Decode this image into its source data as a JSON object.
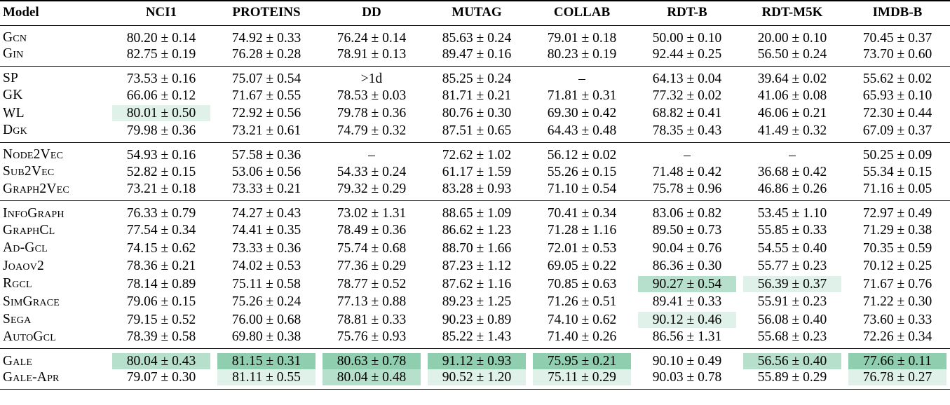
{
  "header": [
    "Model",
    "NCI1",
    "PROTEINS",
    "DD",
    "MUTAG",
    "COLLAB",
    "RDT-B",
    "RDT-M5K",
    "IMDB-B"
  ],
  "groups": [
    [
      {
        "model": "Gcn",
        "values": [
          "80.20 ± 0.14",
          "74.92 ± 0.33",
          "76.24 ± 0.14",
          "85.63 ± 0.24",
          "79.01 ± 0.18",
          "50.00 ± 0.10",
          "20.00 ± 0.10",
          "70.45 ± 0.37"
        ],
        "highlight": [
          "",
          "",
          "",
          "",
          "",
          "",
          "",
          ""
        ]
      },
      {
        "model": "Gin",
        "values": [
          "82.75 ± 0.19",
          "76.28 ± 0.28",
          "78.91 ± 0.13",
          "89.47 ± 0.16",
          "80.23 ± 0.19",
          "92.44 ± 0.25",
          "56.50 ± 0.24",
          "73.70 ± 0.60"
        ],
        "highlight": [
          "",
          "",
          "",
          "",
          "",
          "",
          "",
          ""
        ]
      }
    ],
    [
      {
        "model": "SP",
        "values": [
          "73.53 ± 0.16",
          "75.07 ± 0.54",
          ">1d",
          "85.25 ± 0.24",
          "–",
          "64.13 ± 0.04",
          "39.64 ± 0.02",
          "55.62 ± 0.02"
        ],
        "highlight": [
          "",
          "",
          "",
          "",
          "",
          "",
          "",
          ""
        ]
      },
      {
        "model": "GK",
        "values": [
          "66.06 ± 0.12",
          "71.67 ± 0.55",
          "78.53 ± 0.03",
          "81.71 ± 0.21",
          "71.81 ± 0.31",
          "77.32 ± 0.02",
          "41.06 ± 0.08",
          "65.93 ± 0.10"
        ],
        "highlight": [
          "",
          "",
          "",
          "",
          "",
          "",
          "",
          ""
        ]
      },
      {
        "model": "WL",
        "values": [
          "80.01 ± 0.50",
          "72.92 ± 0.56",
          "79.78 ± 0.36",
          "80.76 ± 0.30",
          "69.30 ± 0.42",
          "68.82 ± 0.41",
          "46.06 ± 0.21",
          "72.30 ± 0.44"
        ],
        "highlight": [
          "light",
          "",
          "",
          "",
          "",
          "",
          "",
          ""
        ]
      },
      {
        "model": "Dgk",
        "values": [
          "79.98 ± 0.36",
          "73.21 ± 0.61",
          "74.79 ± 0.32",
          "87.51 ± 0.65",
          "64.43 ± 0.48",
          "78.35 ± 0.43",
          "41.49 ± 0.32",
          "67.09 ± 0.37"
        ],
        "highlight": [
          "",
          "",
          "",
          "",
          "",
          "",
          "",
          ""
        ]
      }
    ],
    [
      {
        "model": "Node2Vec",
        "values": [
          "54.93 ± 0.16",
          "57.58 ± 0.36",
          "–",
          "72.62 ± 1.02",
          "56.12 ± 0.02",
          "–",
          "–",
          "50.25 ± 0.09"
        ],
        "highlight": [
          "",
          "",
          "",
          "",
          "",
          "",
          "",
          ""
        ]
      },
      {
        "model": "Sub2Vec",
        "values": [
          "52.82 ± 0.15",
          "53.06 ± 0.56",
          "54.33 ± 0.24",
          "61.17 ± 1.59",
          "55.26 ± 0.15",
          "71.48 ± 0.42",
          "36.68 ± 0.42",
          "55.34 ± 0.15"
        ],
        "highlight": [
          "",
          "",
          "",
          "",
          "",
          "",
          "",
          ""
        ]
      },
      {
        "model": "Graph2Vec",
        "values": [
          "73.21 ± 0.18",
          "73.33 ± 0.21",
          "79.32 ± 0.29",
          "83.28 ± 0.93",
          "71.10 ± 0.54",
          "75.78 ± 0.96",
          "46.86 ± 0.26",
          "71.16 ± 0.05"
        ],
        "highlight": [
          "",
          "",
          "",
          "",
          "",
          "",
          "",
          ""
        ]
      }
    ],
    [
      {
        "model": "InfoGraph",
        "values": [
          "76.33 ± 0.79",
          "74.27 ± 0.43",
          "73.02 ± 1.31",
          "88.65 ± 1.09",
          "70.41 ± 0.34",
          "83.06 ± 0.82",
          "53.45 ± 1.10",
          "72.97 ± 0.49"
        ],
        "highlight": [
          "",
          "",
          "",
          "",
          "",
          "",
          "",
          ""
        ]
      },
      {
        "model": "GraphCl",
        "values": [
          "77.54 ± 0.34",
          "74.41 ± 0.35",
          "78.49 ± 0.36",
          "86.62 ± 1.23",
          "71.28 ± 1.16",
          "89.50 ± 0.73",
          "55.85 ± 0.33",
          "71.29 ± 0.38"
        ],
        "highlight": [
          "",
          "",
          "",
          "",
          "",
          "",
          "",
          ""
        ]
      },
      {
        "model": "Ad-Gcl",
        "values": [
          "74.15 ± 0.62",
          "73.33 ± 0.36",
          "75.74 ± 0.68",
          "88.70 ± 1.66",
          "72.01 ± 0.53",
          "90.04 ± 0.76",
          "54.55 ± 0.40",
          "70.35 ± 0.59"
        ],
        "highlight": [
          "",
          "",
          "",
          "",
          "",
          "",
          "",
          ""
        ]
      },
      {
        "model": "Joaov2",
        "values": [
          "78.36 ± 0.21",
          "74.02 ± 0.53",
          "77.36 ± 0.29",
          "87.23 ± 1.12",
          "69.05 ± 0.22",
          "86.36 ± 0.30",
          "55.77 ± 0.23",
          "70.12 ± 0.25"
        ],
        "highlight": [
          "",
          "",
          "",
          "",
          "",
          "",
          "",
          ""
        ]
      },
      {
        "model": "Rgcl",
        "values": [
          "78.14 ± 0.89",
          "75.11 ± 0.58",
          "78.77 ± 0.52",
          "87.62 ± 1.16",
          "70.85 ± 0.63",
          "90.27 ± 0.54",
          "56.39 ± 0.37",
          "71.67 ± 0.76"
        ],
        "highlight": [
          "",
          "",
          "",
          "",
          "",
          "mid",
          "light",
          ""
        ]
      },
      {
        "model": "SimGrace",
        "values": [
          "79.06 ± 0.15",
          "75.26 ± 0.24",
          "77.13 ± 0.88",
          "89.23 ± 1.25",
          "71.26 ± 0.51",
          "89.41 ± 0.33",
          "55.91 ± 0.23",
          "71.22 ± 0.30"
        ],
        "highlight": [
          "",
          "",
          "",
          "",
          "",
          "",
          "",
          ""
        ]
      },
      {
        "model": "Sega",
        "values": [
          "79.15 ± 0.52",
          "76.00 ± 0.68",
          "78.81 ± 0.33",
          "90.23 ± 0.89",
          "74.10 ± 0.62",
          "90.12 ± 0.46",
          "56.08 ± 0.40",
          "73.60 ± 0.33"
        ],
        "highlight": [
          "",
          "",
          "",
          "",
          "",
          "light",
          "",
          ""
        ]
      },
      {
        "model": "AutoGcl",
        "values": [
          "78.39 ± 0.58",
          "69.80 ± 0.38",
          "75.76 ± 0.93",
          "85.22 ± 1.43",
          "71.40 ± 0.26",
          "86.56 ± 1.31",
          "55.68 ± 0.23",
          "72.26 ± 0.34"
        ],
        "highlight": [
          "",
          "",
          "",
          "",
          "",
          "",
          "",
          ""
        ]
      }
    ],
    [
      {
        "model": "Gale",
        "values": [
          "80.04 ± 0.43",
          "81.15 ± 0.31",
          "80.63 ± 0.78",
          "91.12 ± 0.93",
          "75.95 ± 0.21",
          "90.10 ± 0.49",
          "56.56 ± 0.40",
          "77.66 ± 0.11"
        ],
        "highlight": [
          "mid",
          "dark",
          "dark",
          "dark",
          "dark",
          "",
          "mid",
          "dark"
        ]
      },
      {
        "model": "Gale-Apr",
        "values": [
          "79.07 ± 0.30",
          "81.11 ± 0.55",
          "80.04 ± 0.48",
          "90.52 ± 1.20",
          "75.11 ± 0.29",
          "90.03 ± 0.78",
          "55.89 ± 0.29",
          "76.78 ± 0.27"
        ],
        "highlight": [
          "",
          "light",
          "mid",
          "light",
          "light",
          "",
          "",
          "light"
        ]
      }
    ]
  ],
  "colors": {
    "highlight_light": "#dff1e9",
    "highlight_mid": "#b6e0cb",
    "highlight_dark": "#8fcfb0"
  }
}
